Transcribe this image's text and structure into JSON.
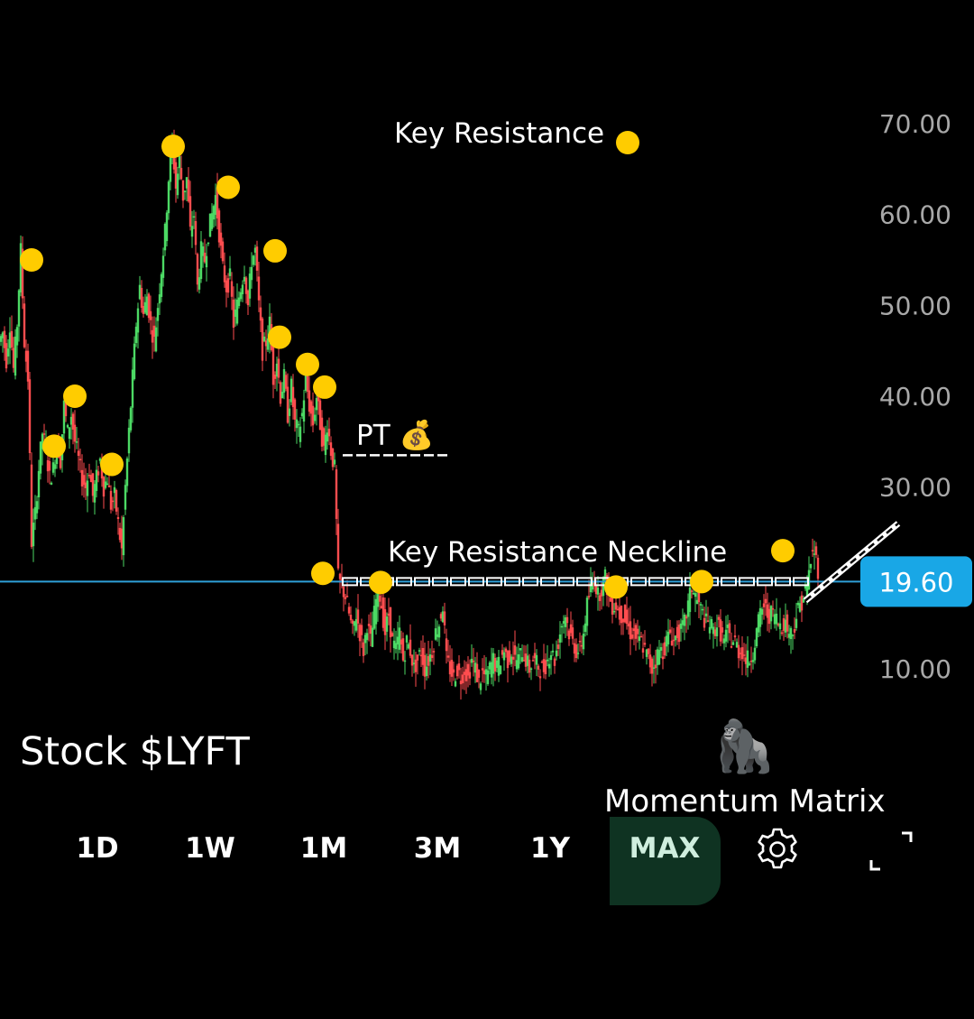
{
  "ticker_label": "Stock $LYFT",
  "brand": {
    "emoji": "🦍",
    "name": "Momentum Matrix"
  },
  "range_tabs": [
    "1D",
    "1W",
    "1M",
    "3M",
    "1Y",
    "MAX"
  ],
  "active_range": "MAX",
  "icons": {
    "settings": "gear-icon",
    "fullscreen": "fullscreen-icon"
  },
  "colors": {
    "background": "#000000",
    "up_candle": "#4cd964",
    "down_candle": "#ff4d4f",
    "current_price_line": "#2f9fd8",
    "current_price_box": "#19a7e6",
    "marker": "#ffcc00",
    "annotation": "#ffffff"
  },
  "chart_data": {
    "type": "candlestick",
    "ylim": [
      5,
      75
    ],
    "yticks": [
      70,
      60,
      50,
      40,
      30,
      10
    ],
    "ytick_labels": [
      "70.00",
      "60.00",
      "50.00",
      "40.00",
      "30.00",
      "10.00"
    ],
    "current_price": 19.6,
    "current_price_label": "19.60",
    "price_path": [
      [
        0,
        46
      ],
      [
        4,
        47
      ],
      [
        8,
        44
      ],
      [
        12,
        48
      ],
      [
        16,
        43
      ],
      [
        20,
        48
      ],
      [
        24,
        56
      ],
      [
        28,
        46
      ],
      [
        32,
        42
      ],
      [
        36,
        24
      ],
      [
        40,
        27
      ],
      [
        44,
        32
      ],
      [
        48,
        36
      ],
      [
        52,
        34
      ],
      [
        56,
        31
      ],
      [
        60,
        32
      ],
      [
        64,
        35
      ],
      [
        68,
        33
      ],
      [
        72,
        39
      ],
      [
        76,
        36
      ],
      [
        80,
        38
      ],
      [
        84,
        35
      ],
      [
        88,
        33
      ],
      [
        92,
        31
      ],
      [
        96,
        30
      ],
      [
        100,
        32
      ],
      [
        104,
        29
      ],
      [
        108,
        31
      ],
      [
        112,
        33
      ],
      [
        116,
        30
      ],
      [
        120,
        31
      ],
      [
        124,
        28
      ],
      [
        128,
        29
      ],
      [
        132,
        26
      ],
      [
        136,
        23
      ],
      [
        140,
        30
      ],
      [
        144,
        36
      ],
      [
        148,
        42
      ],
      [
        152,
        48
      ],
      [
        156,
        52
      ],
      [
        160,
        49
      ],
      [
        164,
        51
      ],
      [
        168,
        48
      ],
      [
        172,
        46
      ],
      [
        176,
        50
      ],
      [
        180,
        54
      ],
      [
        184,
        58
      ],
      [
        188,
        64
      ],
      [
        192,
        68
      ],
      [
        196,
        63
      ],
      [
        200,
        66
      ],
      [
        204,
        62
      ],
      [
        208,
        64
      ],
      [
        212,
        58
      ],
      [
        216,
        60
      ],
      [
        220,
        52
      ],
      [
        224,
        56
      ],
      [
        228,
        55
      ],
      [
        232,
        58
      ],
      [
        236,
        60
      ],
      [
        240,
        62
      ],
      [
        244,
        58
      ],
      [
        248,
        54
      ],
      [
        252,
        52
      ],
      [
        256,
        53
      ],
      [
        260,
        48
      ],
      [
        264,
        50
      ],
      [
        268,
        52
      ],
      [
        272,
        54
      ],
      [
        276,
        50
      ],
      [
        280,
        55
      ],
      [
        284,
        56
      ],
      [
        288,
        50
      ],
      [
        292,
        45
      ],
      [
        296,
        46
      ],
      [
        300,
        48
      ],
      [
        304,
        42
      ],
      [
        308,
        44
      ],
      [
        312,
        40
      ],
      [
        316,
        42
      ],
      [
        320,
        38
      ],
      [
        324,
        41
      ],
      [
        328,
        37
      ],
      [
        332,
        36
      ],
      [
        336,
        38
      ],
      [
        340,
        42
      ],
      [
        344,
        39
      ],
      [
        348,
        37
      ],
      [
        352,
        40
      ],
      [
        356,
        37
      ],
      [
        360,
        34
      ],
      [
        364,
        37
      ],
      [
        368,
        34
      ],
      [
        372,
        32
      ],
      [
        376,
        20
      ],
      [
        380,
        19
      ],
      [
        384,
        18
      ],
      [
        388,
        16
      ],
      [
        392,
        14
      ],
      [
        396,
        16
      ],
      [
        400,
        14
      ],
      [
        404,
        12
      ],
      [
        408,
        15
      ],
      [
        412,
        13
      ],
      [
        416,
        16
      ],
      [
        420,
        19
      ],
      [
        424,
        17
      ],
      [
        428,
        14
      ],
      [
        432,
        16
      ],
      [
        436,
        13
      ],
      [
        440,
        12
      ],
      [
        444,
        14
      ],
      [
        448,
        11
      ],
      [
        452,
        13
      ],
      [
        456,
        12
      ],
      [
        460,
        10
      ],
      [
        464,
        11
      ],
      [
        468,
        12
      ],
      [
        472,
        10
      ],
      [
        476,
        11
      ],
      [
        480,
        12
      ],
      [
        484,
        14
      ],
      [
        488,
        15
      ],
      [
        492,
        17
      ],
      [
        496,
        11
      ],
      [
        500,
        10
      ],
      [
        504,
        9
      ],
      [
        508,
        10
      ],
      [
        512,
        9
      ],
      [
        516,
        10
      ],
      [
        520,
        9
      ],
      [
        524,
        11
      ],
      [
        528,
        10
      ],
      [
        532,
        8.5
      ],
      [
        536,
        9.5
      ],
      [
        540,
        9
      ],
      [
        544,
        10
      ],
      [
        548,
        11
      ],
      [
        552,
        10
      ],
      [
        556,
        11
      ],
      [
        560,
        12
      ],
      [
        564,
        11
      ],
      [
        568,
        12
      ],
      [
        572,
        11
      ],
      [
        576,
        11
      ],
      [
        580,
        12
      ],
      [
        584,
        11
      ],
      [
        588,
        10
      ],
      [
        592,
        11
      ],
      [
        596,
        10.5
      ],
      [
        600,
        10
      ],
      [
        604,
        10
      ],
      [
        608,
        11
      ],
      [
        612,
        12
      ],
      [
        616,
        11
      ],
      [
        620,
        13
      ],
      [
        624,
        15
      ],
      [
        628,
        16
      ],
      [
        632,
        14
      ],
      [
        636,
        13
      ],
      [
        640,
        12
      ],
      [
        644,
        12
      ],
      [
        648,
        14
      ],
      [
        652,
        17
      ],
      [
        656,
        19
      ],
      [
        660,
        20
      ],
      [
        664,
        18
      ],
      [
        668,
        19
      ],
      [
        672,
        20
      ],
      [
        676,
        18
      ],
      [
        680,
        17
      ],
      [
        684,
        17
      ],
      [
        688,
        16
      ],
      [
        692,
        16
      ],
      [
        696,
        15
      ],
      [
        700,
        14
      ],
      [
        704,
        14
      ],
      [
        708,
        13
      ],
      [
        712,
        13
      ],
      [
        716,
        12
      ],
      [
        720,
        11
      ],
      [
        724,
        10
      ],
      [
        728,
        11
      ],
      [
        732,
        12
      ],
      [
        736,
        12
      ],
      [
        740,
        13
      ],
      [
        744,
        14
      ],
      [
        748,
        13
      ],
      [
        752,
        14
      ],
      [
        756,
        14
      ],
      [
        760,
        15
      ],
      [
        764,
        17
      ],
      [
        768,
        19
      ],
      [
        772,
        18
      ],
      [
        776,
        17
      ],
      [
        780,
        16
      ],
      [
        784,
        15
      ],
      [
        788,
        15
      ],
      [
        792,
        14
      ],
      [
        796,
        15
      ],
      [
        800,
        14
      ],
      [
        804,
        13
      ],
      [
        808,
        14
      ],
      [
        812,
        13
      ],
      [
        816,
        13
      ],
      [
        820,
        12
      ],
      [
        824,
        12
      ],
      [
        828,
        11
      ],
      [
        832,
        11
      ],
      [
        836,
        12
      ],
      [
        840,
        14
      ],
      [
        844,
        16
      ],
      [
        848,
        17
      ],
      [
        852,
        16
      ],
      [
        856,
        16
      ],
      [
        860,
        16
      ],
      [
        864,
        15
      ],
      [
        868,
        15
      ],
      [
        872,
        15
      ],
      [
        876,
        14
      ],
      [
        880,
        14
      ],
      [
        884,
        16
      ],
      [
        888,
        17
      ],
      [
        892,
        18
      ],
      [
        896,
        19
      ],
      [
        900,
        22
      ],
      [
        904,
        23
      ],
      [
        908,
        21
      ]
    ],
    "resistance_markers": [
      [
        35,
        55
      ],
      [
        60,
        34.5
      ],
      [
        83,
        40
      ],
      [
        124,
        32.5
      ],
      [
        192,
        67.5
      ],
      [
        253,
        63
      ],
      [
        305,
        56
      ],
      [
        310,
        46.5
      ],
      [
        341,
        43.5
      ],
      [
        360,
        41
      ],
      [
        358,
        20.5
      ],
      [
        422,
        19.5
      ],
      [
        683,
        19
      ],
      [
        778,
        19.6
      ],
      [
        868,
        23
      ]
    ],
    "neckline": {
      "x": [
        380,
        900
      ],
      "y": 19.6
    },
    "breakout_line": {
      "x": [
        893,
        996
      ],
      "y": [
        17.5,
        26
      ]
    },
    "price_target": {
      "label": "PT 💰",
      "x": [
        380,
        498
      ],
      "y": 33.5
    },
    "annotations": {
      "key_resistance": "Key Resistance",
      "key_resistance_neckline": "Key Resistance Neckline",
      "price_target": "PT 💰"
    },
    "legend_marker_label": "Key Resistance",
    "grid": false,
    "legend": "top-center"
  }
}
